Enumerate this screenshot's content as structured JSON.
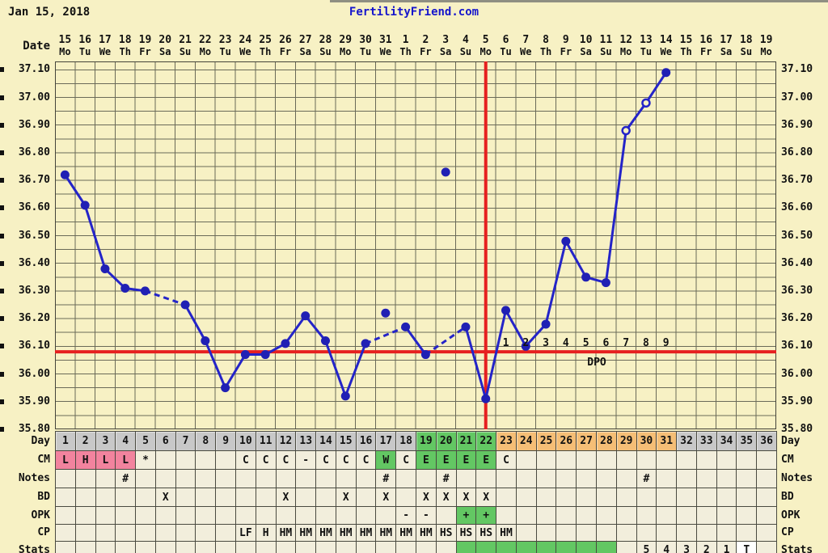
{
  "header": {
    "date_text": "Jan 15, 2018",
    "site_title": "FertilityFriend.com"
  },
  "axis": {
    "date_row_label": "Date",
    "dates": [
      "15",
      "16",
      "17",
      "18",
      "19",
      "20",
      "21",
      "22",
      "23",
      "24",
      "25",
      "26",
      "27",
      "28",
      "29",
      "30",
      "31",
      "1",
      "2",
      "3",
      "4",
      "5",
      "6",
      "7",
      "8",
      "9",
      "10",
      "11",
      "12",
      "13",
      "14",
      "15",
      "16",
      "17",
      "18",
      "19"
    ],
    "weekdays": [
      "Mo",
      "Tu",
      "We",
      "Th",
      "Fr",
      "Sa",
      "Su",
      "Mo",
      "Tu",
      "We",
      "Th",
      "Fr",
      "Sa",
      "Su",
      "Mo",
      "Tu",
      "We",
      "Th",
      "Fr",
      "Sa",
      "Su",
      "Mo",
      "Tu",
      "We",
      "Th",
      "Fr",
      "Sa",
      "Su",
      "Mo",
      "Tu",
      "We",
      "Th",
      "Fr",
      "Sa",
      "Su",
      "Mo"
    ],
    "y_labels": [
      "37.10",
      "37.00",
      "36.90",
      "36.80",
      "36.70",
      "36.60",
      "36.50",
      "36.40",
      "36.30",
      "36.20",
      "36.10",
      "36.00",
      "35.90",
      "35.80"
    ],
    "y_max": 37.1,
    "y_min": 35.8,
    "y_step": 0.1
  },
  "chart_data": {
    "type": "line",
    "n_days": 36,
    "cycle_days": [
      1,
      2,
      3,
      4,
      5,
      6,
      7,
      8,
      9,
      10,
      11,
      12,
      13,
      14,
      15,
      16,
      17,
      18,
      19,
      20,
      21,
      22,
      23,
      24,
      25,
      26,
      27,
      28,
      29,
      30,
      31,
      32,
      33,
      34,
      35,
      36
    ],
    "temps_celsius": [
      36.72,
      36.61,
      36.38,
      36.31,
      36.3,
      null,
      36.25,
      36.12,
      35.95,
      36.07,
      36.07,
      36.11,
      36.21,
      36.12,
      35.92,
      36.11,
      36.22,
      36.17,
      36.07,
      36.73,
      36.17,
      35.91,
      36.23,
      36.1,
      36.18,
      36.48,
      36.35,
      36.33,
      36.88,
      36.98,
      37.09,
      null,
      null,
      null,
      null,
      null
    ],
    "discarded_days": [
      17,
      20
    ],
    "open_circle_days": [
      29,
      30
    ],
    "coverline_temp": 36.08,
    "ovulation_day": 22,
    "dpo_labels": [
      "1",
      "2",
      "3",
      "4",
      "5",
      "6",
      "7",
      "8",
      "9"
    ],
    "dpo_start_day": 23,
    "dpo_text": "DPO",
    "ylim": [
      35.8,
      37.1
    ],
    "grid": true
  },
  "table": {
    "day_bg_ranges": [
      {
        "from": 1,
        "to": 18,
        "bg": "gray"
      },
      {
        "from": 19,
        "to": 22,
        "bg": "green"
      },
      {
        "from": 23,
        "to": 31,
        "bg": "orange"
      },
      {
        "from": 32,
        "to": 36,
        "bg": "gray"
      }
    ],
    "rows": [
      {
        "label": "Day",
        "type": "day"
      },
      {
        "label": "CM",
        "cells": {
          "1": [
            "L",
            "pink"
          ],
          "2": [
            "H",
            "pink"
          ],
          "3": [
            "L",
            "pink"
          ],
          "4": [
            "L",
            "pink"
          ],
          "5": [
            "*",
            null
          ],
          "10": [
            "C",
            null
          ],
          "11": [
            "C",
            null
          ],
          "12": [
            "C",
            null
          ],
          "13": [
            "-",
            null
          ],
          "14": [
            "C",
            null
          ],
          "15": [
            "C",
            null
          ],
          "16": [
            "C",
            null
          ],
          "17": [
            "W",
            "green"
          ],
          "18": [
            "C",
            null
          ],
          "19": [
            "E",
            "green"
          ],
          "20": [
            "E",
            "green"
          ],
          "21": [
            "E",
            "green"
          ],
          "22": [
            "E",
            "green"
          ],
          "23": [
            "C",
            null
          ]
        }
      },
      {
        "label": "Notes",
        "cells": {
          "4": [
            "#",
            null
          ],
          "17": [
            "#",
            null
          ],
          "20": [
            "#",
            null
          ],
          "30": [
            "#",
            null
          ]
        }
      },
      {
        "label": "BD",
        "cells": {
          "6": [
            "X",
            null
          ],
          "12": [
            "X",
            null
          ],
          "15": [
            "X",
            null
          ],
          "17": [
            "X",
            null
          ],
          "19": [
            "X",
            null
          ],
          "20": [
            "X",
            null
          ],
          "21": [
            "X",
            null
          ],
          "22": [
            "X",
            null
          ]
        }
      },
      {
        "label": "OPK",
        "cells": {
          "18": [
            "-",
            null
          ],
          "19": [
            "-",
            null
          ],
          "21": [
            "+",
            "green"
          ],
          "22": [
            "+",
            "green"
          ]
        }
      },
      {
        "label": "CP",
        "cells": {
          "10": [
            "LF",
            null
          ],
          "11": [
            "H",
            null
          ],
          "12": [
            "HM",
            null
          ],
          "13": [
            "HM",
            null
          ],
          "14": [
            "HM",
            null
          ],
          "15": [
            "HM",
            null
          ],
          "16": [
            "HM",
            null
          ],
          "17": [
            "HM",
            null
          ],
          "18": [
            "HM",
            null
          ],
          "19": [
            "HM",
            null
          ],
          "20": [
            "HS",
            null
          ],
          "21": [
            "HS",
            null
          ],
          "22": [
            "HS",
            null
          ],
          "23": [
            "HM",
            null
          ]
        }
      },
      {
        "label": "Stats",
        "cells": {
          "21": [
            "",
            "green"
          ],
          "22": [
            "",
            "green"
          ],
          "23": [
            "",
            "green"
          ],
          "24": [
            "",
            "green"
          ],
          "25": [
            "",
            "green"
          ],
          "26": [
            "",
            "green"
          ],
          "27": [
            "",
            "green"
          ],
          "28": [
            "",
            "green"
          ],
          "30": [
            "5",
            null
          ],
          "31": [
            "4",
            null
          ],
          "32": [
            "3",
            null
          ],
          "33": [
            "2",
            null
          ],
          "34": [
            "1",
            null
          ],
          "35": [
            "T",
            "white"
          ]
        }
      }
    ]
  },
  "colors": {
    "page_bg": "#F7F1C4",
    "grid": "#6a6a58",
    "plot_border": "#44443a",
    "line_blue": "#2424C8",
    "dot_blue": "#2020B4",
    "red": "#E62020",
    "title_blue": "#1616CC",
    "cell_bg": "#F2EEDC",
    "gray": "#C8C8C8",
    "green": "#63C763",
    "orange": "#F5BE76",
    "pink": "#F2839E",
    "white": "#FFFFFF",
    "text": "#111111"
  }
}
